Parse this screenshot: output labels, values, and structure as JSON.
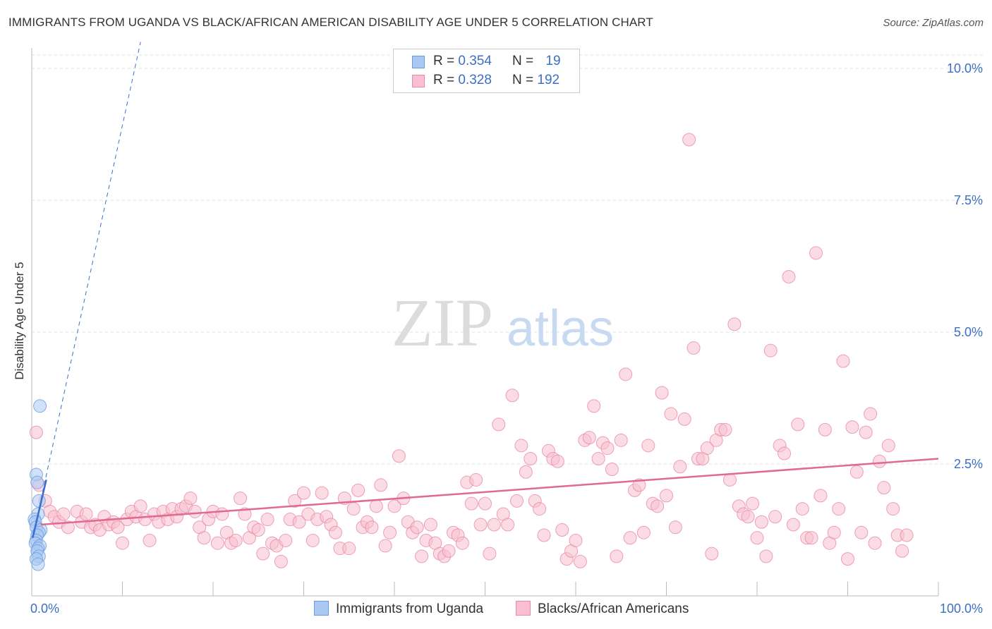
{
  "title": "IMMIGRANTS FROM UGANDA VS BLACK/AFRICAN AMERICAN DISABILITY AGE UNDER 5 CORRELATION CHART",
  "source": "Source: ZipAtlas.com",
  "watermark": {
    "zip": "ZIP",
    "atlas": "atlas"
  },
  "legend_top": [
    {
      "r_label": "R = ",
      "r_value": "0.354",
      "n_label": "N = ",
      "n_value": "19",
      "color": "#a9c8f2",
      "border": "#6a9be0"
    },
    {
      "r_label": "R = ",
      "r_value": "0.328",
      "n_label": "N = ",
      "n_value": "192",
      "color": "#f8bfd0",
      "border": "#e88aa8"
    }
  ],
  "chart_data": {
    "type": "scatter",
    "title": "IMMIGRANTS FROM UGANDA VS BLACK/AFRICAN AMERICAN DISABILITY AGE UNDER 5 CORRELATION CHART",
    "xlabel": "",
    "ylabel": "Disability Age Under 5",
    "xlim": [
      0,
      100
    ],
    "ylim": [
      0,
      10.5
    ],
    "x_tick_labels": [
      "0.0%",
      "100.0%"
    ],
    "y_ticks": [
      2.5,
      5.0,
      7.5,
      10.0
    ],
    "y_tick_labels": [
      "2.5%",
      "5.0%",
      "7.5%",
      "10.0%"
    ],
    "grid": true,
    "legend_position": "top-center",
    "series": [
      {
        "name": "Immigrants from Uganda",
        "color": "#a9c8f2",
        "stroke": "#6a9be0",
        "trend_color": "#3a6fd0",
        "trend_solid": [
          [
            0.1,
            1.1
          ],
          [
            1.6,
            2.2
          ]
        ],
        "trend_dashed": [
          [
            0.1,
            1.1
          ],
          [
            12.0,
            10.5
          ]
        ],
        "points": [
          [
            0.9,
            3.6
          ],
          [
            0.5,
            2.3
          ],
          [
            0.6,
            2.15
          ],
          [
            0.8,
            1.8
          ],
          [
            0.7,
            1.55
          ],
          [
            0.3,
            1.45
          ],
          [
            0.4,
            1.4
          ],
          [
            0.5,
            1.3
          ],
          [
            1.0,
            1.25
          ],
          [
            0.8,
            1.2
          ],
          [
            0.6,
            1.15
          ],
          [
            0.5,
            1.05
          ],
          [
            0.4,
            1.0
          ],
          [
            0.9,
            0.95
          ],
          [
            0.7,
            0.9
          ],
          [
            0.6,
            0.85
          ],
          [
            0.8,
            0.75
          ],
          [
            0.5,
            0.7
          ],
          [
            0.7,
            0.6
          ]
        ]
      },
      {
        "name": "Blacks/African Americans",
        "color": "#f8bfd0",
        "stroke": "#e88aa8",
        "trend_color": "#e06a92",
        "trend_solid": [
          [
            1.0,
            1.35
          ],
          [
            100.0,
            2.6
          ]
        ],
        "points": [
          [
            0.5,
            3.1
          ],
          [
            0.8,
            2.1
          ],
          [
            1.5,
            1.8
          ],
          [
            2.0,
            1.6
          ],
          [
            2.5,
            1.5
          ],
          [
            3.0,
            1.4
          ],
          [
            3.5,
            1.55
          ],
          [
            4.0,
            1.3
          ],
          [
            5.0,
            1.6
          ],
          [
            5.5,
            1.4
          ],
          [
            6.0,
            1.55
          ],
          [
            6.5,
            1.3
          ],
          [
            7.0,
            1.35
          ],
          [
            7.5,
            1.25
          ],
          [
            8.0,
            1.5
          ],
          [
            8.5,
            1.35
          ],
          [
            9.0,
            1.4
          ],
          [
            9.5,
            1.3
          ],
          [
            10.0,
            1.0
          ],
          [
            10.5,
            1.45
          ],
          [
            11.0,
            1.6
          ],
          [
            11.5,
            1.5
          ],
          [
            12.0,
            1.7
          ],
          [
            12.5,
            1.45
          ],
          [
            13.0,
            1.05
          ],
          [
            13.5,
            1.55
          ],
          [
            14.0,
            1.4
          ],
          [
            14.5,
            1.6
          ],
          [
            15.0,
            1.45
          ],
          [
            15.5,
            1.65
          ],
          [
            16.0,
            1.5
          ],
          [
            16.5,
            1.65
          ],
          [
            17.0,
            1.7
          ],
          [
            17.5,
            1.85
          ],
          [
            18.0,
            1.6
          ],
          [
            18.5,
            1.3
          ],
          [
            19.0,
            1.1
          ],
          [
            19.5,
            1.45
          ],
          [
            20.0,
            1.6
          ],
          [
            20.5,
            1.0
          ],
          [
            21.0,
            1.55
          ],
          [
            21.5,
            1.2
          ],
          [
            22.0,
            1.0
          ],
          [
            22.5,
            1.05
          ],
          [
            23.0,
            1.85
          ],
          [
            23.5,
            1.55
          ],
          [
            24.0,
            1.1
          ],
          [
            24.5,
            1.3
          ],
          [
            25.0,
            1.25
          ],
          [
            25.5,
            0.8
          ],
          [
            26.0,
            1.45
          ],
          [
            26.5,
            1.0
          ],
          [
            27.0,
            0.95
          ],
          [
            27.5,
            0.65
          ],
          [
            28.0,
            1.05
          ],
          [
            28.5,
            1.45
          ],
          [
            29.0,
            1.8
          ],
          [
            29.5,
            1.4
          ],
          [
            30.0,
            1.95
          ],
          [
            30.5,
            1.55
          ],
          [
            31.0,
            1.05
          ],
          [
            31.5,
            1.45
          ],
          [
            32.0,
            1.95
          ],
          [
            32.5,
            1.5
          ],
          [
            33.0,
            1.35
          ],
          [
            33.5,
            1.2
          ],
          [
            34.0,
            0.9
          ],
          [
            34.5,
            1.85
          ],
          [
            35.0,
            0.9
          ],
          [
            35.5,
            1.65
          ],
          [
            36.0,
            2.0
          ],
          [
            36.5,
            1.3
          ],
          [
            37.0,
            1.4
          ],
          [
            37.5,
            1.3
          ],
          [
            38.0,
            1.7
          ],
          [
            38.5,
            2.1
          ],
          [
            39.0,
            0.95
          ],
          [
            39.5,
            1.2
          ],
          [
            40.0,
            1.7
          ],
          [
            40.5,
            2.65
          ],
          [
            41.0,
            1.85
          ],
          [
            41.5,
            1.4
          ],
          [
            42.0,
            1.2
          ],
          [
            42.5,
            1.3
          ],
          [
            43.0,
            0.75
          ],
          [
            43.5,
            1.05
          ],
          [
            44.0,
            1.35
          ],
          [
            44.5,
            1.0
          ],
          [
            45.0,
            0.8
          ],
          [
            45.5,
            0.75
          ],
          [
            46.0,
            0.85
          ],
          [
            46.5,
            1.2
          ],
          [
            47.0,
            1.15
          ],
          [
            47.5,
            1.0
          ],
          [
            48.0,
            2.15
          ],
          [
            48.5,
            1.75
          ],
          [
            49.0,
            2.2
          ],
          [
            49.5,
            1.35
          ],
          [
            50.0,
            1.75
          ],
          [
            50.5,
            0.8
          ],
          [
            51.0,
            1.35
          ],
          [
            51.5,
            3.25
          ],
          [
            52.0,
            1.55
          ],
          [
            52.5,
            1.35
          ],
          [
            53.0,
            3.8
          ],
          [
            53.5,
            1.8
          ],
          [
            54.0,
            2.85
          ],
          [
            54.5,
            2.35
          ],
          [
            55.0,
            2.6
          ],
          [
            55.5,
            1.8
          ],
          [
            56.0,
            1.65
          ],
          [
            56.5,
            1.15
          ],
          [
            57.0,
            2.75
          ],
          [
            57.5,
            2.6
          ],
          [
            58.0,
            2.55
          ],
          [
            58.5,
            1.25
          ],
          [
            59.0,
            0.7
          ],
          [
            59.5,
            0.85
          ],
          [
            60.0,
            1.05
          ],
          [
            60.5,
            0.65
          ],
          [
            61.0,
            2.95
          ],
          [
            61.5,
            3.0
          ],
          [
            62.0,
            3.6
          ],
          [
            62.5,
            2.6
          ],
          [
            63.0,
            2.9
          ],
          [
            63.5,
            2.8
          ],
          [
            64.0,
            2.4
          ],
          [
            64.5,
            0.75
          ],
          [
            65.0,
            2.95
          ],
          [
            65.5,
            4.2
          ],
          [
            66.0,
            1.1
          ],
          [
            66.5,
            2.0
          ],
          [
            67.0,
            2.1
          ],
          [
            67.5,
            1.2
          ],
          [
            68.0,
            2.85
          ],
          [
            68.5,
            1.75
          ],
          [
            69.0,
            1.7
          ],
          [
            69.5,
            3.85
          ],
          [
            70.0,
            1.9
          ],
          [
            70.5,
            3.45
          ],
          [
            71.0,
            1.3
          ],
          [
            71.5,
            2.45
          ],
          [
            72.0,
            3.35
          ],
          [
            72.5,
            8.65
          ],
          [
            73.0,
            4.7
          ],
          [
            73.5,
            2.6
          ],
          [
            74.0,
            2.6
          ],
          [
            74.5,
            2.8
          ],
          [
            75.0,
            0.8
          ],
          [
            75.5,
            2.95
          ],
          [
            76.0,
            3.15
          ],
          [
            76.5,
            3.15
          ],
          [
            77.0,
            2.2
          ],
          [
            77.5,
            5.15
          ],
          [
            78.0,
            1.7
          ],
          [
            78.5,
            1.55
          ],
          [
            79.0,
            1.5
          ],
          [
            79.5,
            1.75
          ],
          [
            80.0,
            1.1
          ],
          [
            80.5,
            1.4
          ],
          [
            81.0,
            0.75
          ],
          [
            81.5,
            4.65
          ],
          [
            82.0,
            1.5
          ],
          [
            82.5,
            2.85
          ],
          [
            83.0,
            2.7
          ],
          [
            83.5,
            6.05
          ],
          [
            84.0,
            1.35
          ],
          [
            84.5,
            3.25
          ],
          [
            85.0,
            1.65
          ],
          [
            85.5,
            1.1
          ],
          [
            86.0,
            1.1
          ],
          [
            86.5,
            6.5
          ],
          [
            87.0,
            1.9
          ],
          [
            87.5,
            3.15
          ],
          [
            88.0,
            1.0
          ],
          [
            88.5,
            1.2
          ],
          [
            89.0,
            1.65
          ],
          [
            89.5,
            4.45
          ],
          [
            90.0,
            0.7
          ],
          [
            90.5,
            3.2
          ],
          [
            91.0,
            2.35
          ],
          [
            91.5,
            1.2
          ],
          [
            92.0,
            3.1
          ],
          [
            92.5,
            3.45
          ],
          [
            93.0,
            1.0
          ],
          [
            93.5,
            2.55
          ],
          [
            94.0,
            2.05
          ],
          [
            94.5,
            2.85
          ],
          [
            95.0,
            1.65
          ],
          [
            95.5,
            1.15
          ],
          [
            96.0,
            0.85
          ],
          [
            96.5,
            1.15
          ]
        ]
      }
    ]
  }
}
